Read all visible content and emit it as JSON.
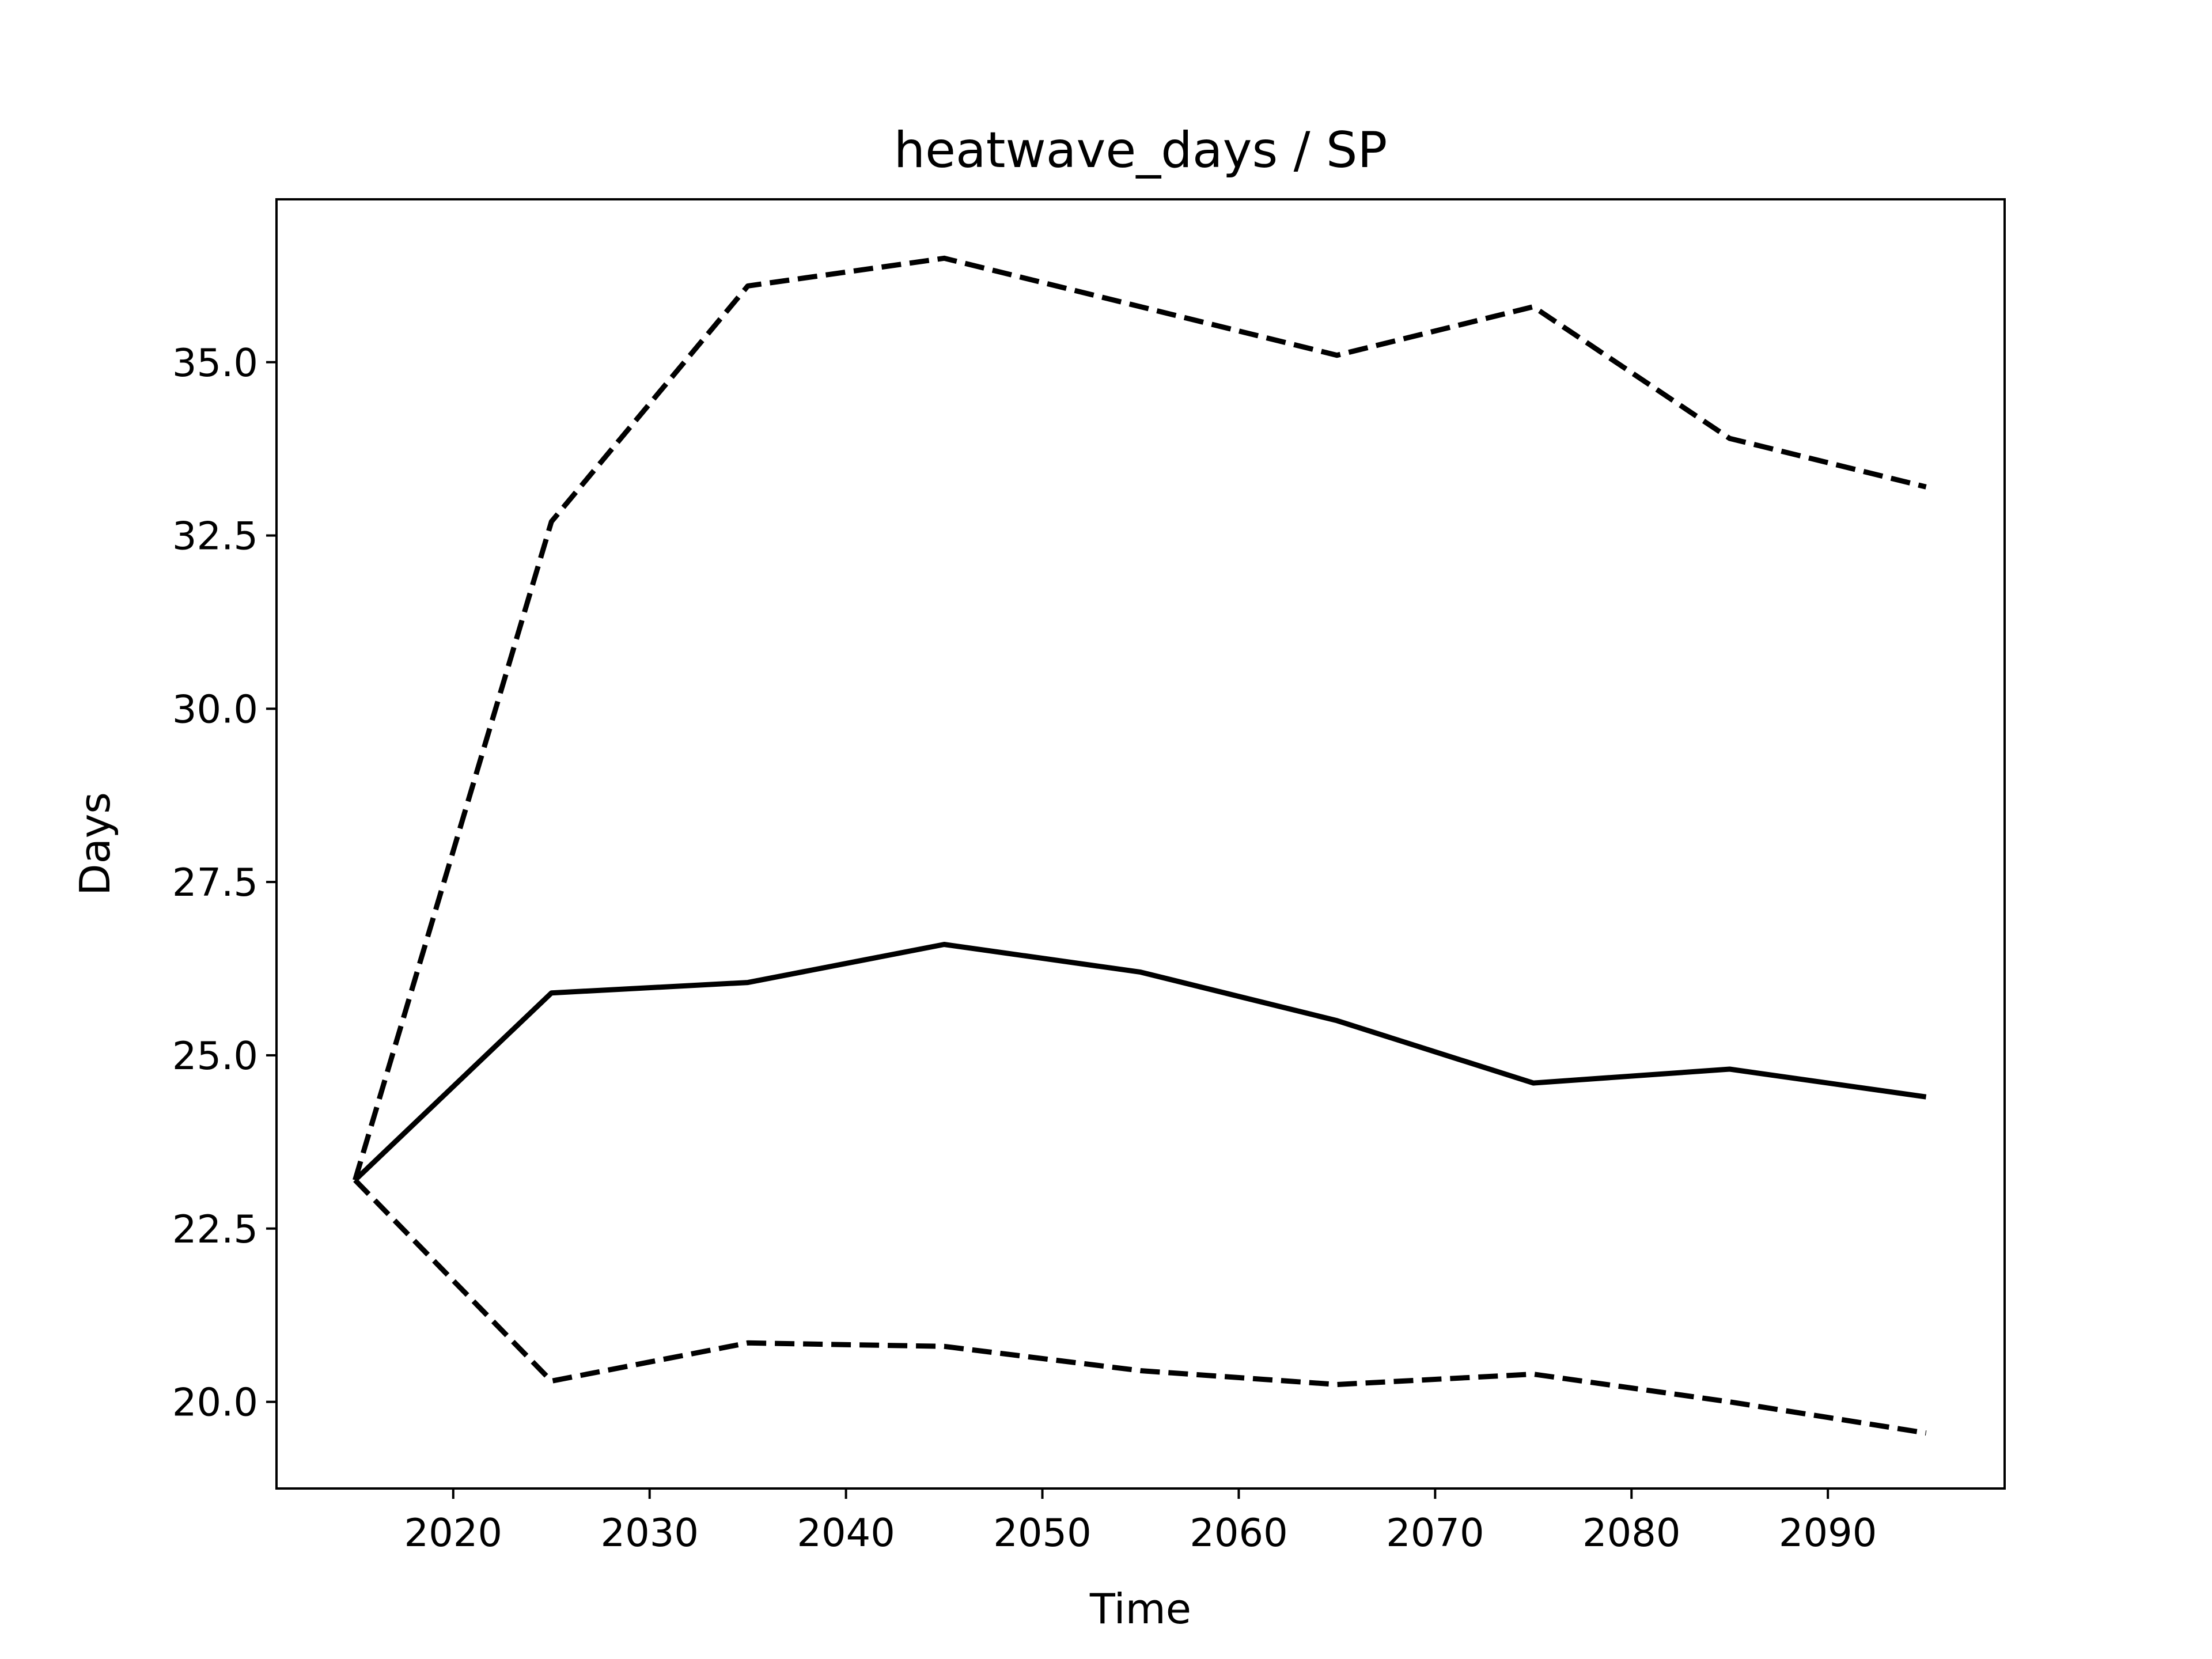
{
  "chart_data": {
    "type": "line",
    "title": "heatwave_days / SP",
    "xlabel": "Time",
    "ylabel": "Days",
    "xlim": [
      2011,
      2099
    ],
    "ylim": [
      18.75,
      37.35
    ],
    "xticks": [
      2020,
      2030,
      2040,
      2050,
      2060,
      2070,
      2080,
      2090
    ],
    "yticks": [
      20.0,
      22.5,
      25.0,
      27.5,
      30.0,
      32.5,
      35.0
    ],
    "ytick_labels": [
      "20.0",
      "22.5",
      "25.0",
      "27.5",
      "30.0",
      "32.5",
      "35.0"
    ],
    "grid": false,
    "legend": "none",
    "x": [
      2015,
      2025,
      2035,
      2045,
      2055,
      2065,
      2075,
      2085,
      2095
    ],
    "series": [
      {
        "style": "dashed",
        "color": "#000000",
        "values": [
          23.2,
          32.7,
          36.1,
          36.5,
          35.8,
          35.1,
          35.8,
          33.9,
          33.2
        ]
      },
      {
        "style": "solid",
        "color": "#000000",
        "values": [
          23.2,
          25.9,
          26.05,
          26.6,
          26.2,
          25.5,
          24.6,
          24.8,
          24.4
        ]
      },
      {
        "style": "dashed",
        "color": "#000000",
        "values": [
          23.2,
          20.3,
          20.85,
          20.8,
          20.45,
          20.25,
          20.4,
          20.0,
          19.55
        ]
      }
    ]
  }
}
